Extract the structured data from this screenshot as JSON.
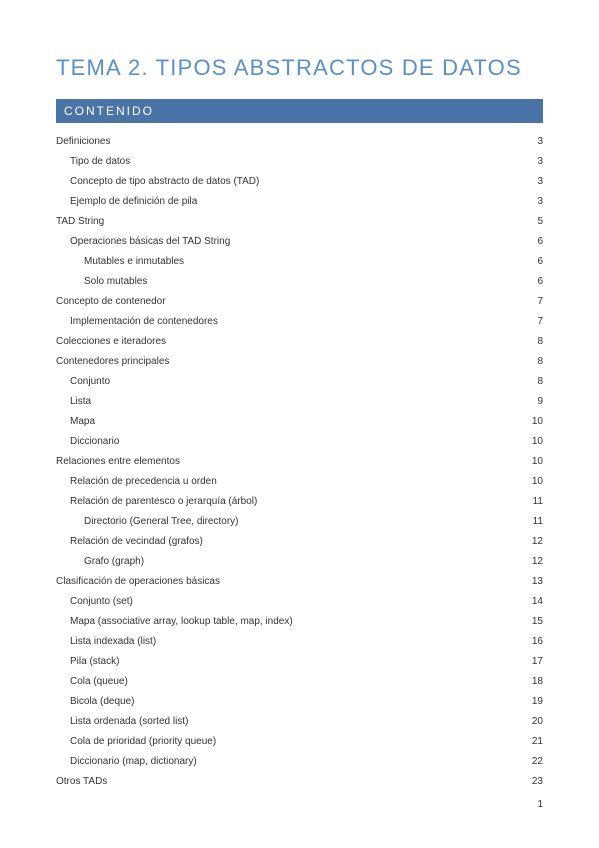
{
  "colors": {
    "title_color": "#5a8fc7",
    "bar_bg": "#4a74a8",
    "bar_text": "#ffffff",
    "text": "#333333",
    "page_bg": "#ffffff"
  },
  "title": "TEMA 2. TIPOS ABSTRACTOS DE DATOS",
  "section_header": "CONTENIDO",
  "page_number": "1",
  "toc": [
    {
      "label": "Definiciones",
      "page": "3",
      "level": 0
    },
    {
      "label": "Tipo de datos",
      "page": "3",
      "level": 1
    },
    {
      "label": "Concepto de tipo abstracto de datos (TAD)",
      "page": "3",
      "level": 1
    },
    {
      "label": "Ejemplo de definición de pila",
      "page": "3",
      "level": 1
    },
    {
      "label": "TAD String",
      "page": "5",
      "level": 0
    },
    {
      "label": "Operaciones básicas del TAD String",
      "page": "6",
      "level": 1
    },
    {
      "label": "Mutables e inmutables",
      "page": "6",
      "level": 2
    },
    {
      "label": "Solo mutables",
      "page": "6",
      "level": 2
    },
    {
      "label": "Concepto de contenedor",
      "page": "7",
      "level": 0
    },
    {
      "label": "Implementación de contenedores",
      "page": "7",
      "level": 1
    },
    {
      "label": "Colecciones e iteradores",
      "page": "8",
      "level": 0
    },
    {
      "label": "Contenedores principales",
      "page": "8",
      "level": 0
    },
    {
      "label": "Conjunto",
      "page": "8",
      "level": 1
    },
    {
      "label": "Lista",
      "page": "9",
      "level": 1
    },
    {
      "label": "Mapa",
      "page": "10",
      "level": 1
    },
    {
      "label": "Diccionario",
      "page": "10",
      "level": 1
    },
    {
      "label": "Relaciones entre elementos",
      "page": "10",
      "level": 0
    },
    {
      "label": "Relación de precedencia u orden",
      "page": "10",
      "level": 1
    },
    {
      "label": "Relación de parentesco o jerarquía (árbol)",
      "page": "11",
      "level": 1
    },
    {
      "label": "Directorio (General Tree, directory)",
      "page": "11",
      "level": 2
    },
    {
      "label": "Relación de vecindad (grafos)",
      "page": "12",
      "level": 1
    },
    {
      "label": "Grafo (graph)",
      "page": "12",
      "level": 2
    },
    {
      "label": "Clasificación de operaciones básicas",
      "page": "13",
      "level": 0
    },
    {
      "label": "Conjunto (set)",
      "page": "14",
      "level": 1
    },
    {
      "label": "Mapa (associative array, lookup table, map, index)",
      "page": "15",
      "level": 1
    },
    {
      "label": "Lista indexada (list)",
      "page": "16",
      "level": 1
    },
    {
      "label": "Pila (stack)",
      "page": "17",
      "level": 1
    },
    {
      "label": "Cola (queue)",
      "page": "18",
      "level": 1
    },
    {
      "label": "Bicola (deque)",
      "page": "19",
      "level": 1
    },
    {
      "label": "Lista ordenada (sorted list)",
      "page": "20",
      "level": 1
    },
    {
      "label": "Cola de prioridad (priority queue)",
      "page": "21",
      "level": 1
    },
    {
      "label": "Diccionario (map, dictionary)",
      "page": "22",
      "level": 1
    },
    {
      "label": "Otros TADs",
      "page": "23",
      "level": 0
    }
  ]
}
